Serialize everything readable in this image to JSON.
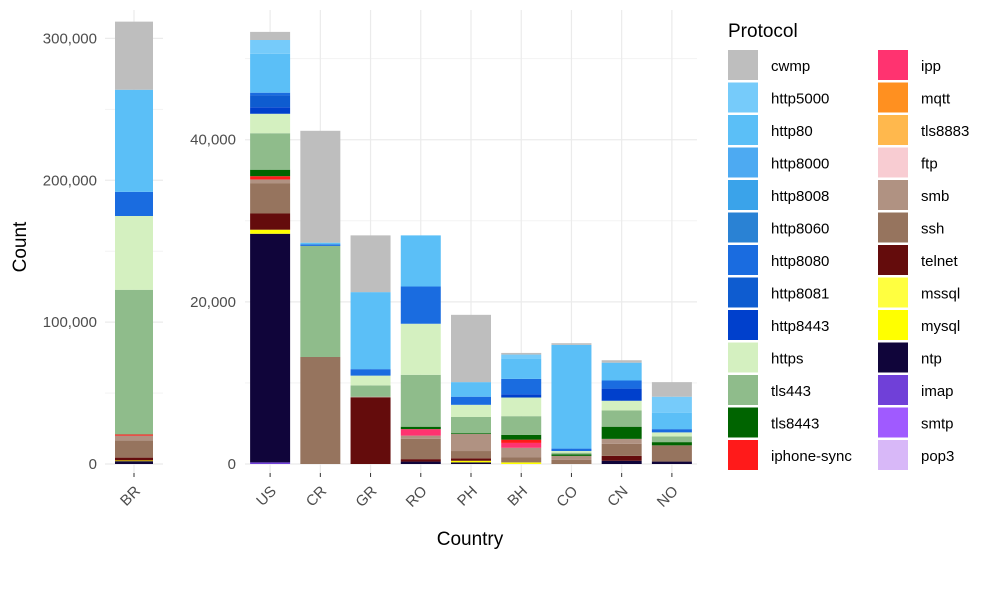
{
  "chart_data": {
    "type": "bar",
    "stacked": true,
    "xlabel": "Country",
    "ylabel": "Count",
    "legend": {
      "title": "Protocol",
      "placement": "right",
      "columns": 2
    },
    "grid": true,
    "protocols": [
      {
        "name": "cwmp",
        "color": "#BEBEBE"
      },
      {
        "name": "http5000",
        "color": "#76CBFA"
      },
      {
        "name": "http80",
        "color": "#5BBFF7"
      },
      {
        "name": "http8000",
        "color": "#4DAAF2"
      },
      {
        "name": "http8008",
        "color": "#3AA3EA"
      },
      {
        "name": "http8060",
        "color": "#2A82D4"
      },
      {
        "name": "http8080",
        "color": "#1A6CE0"
      },
      {
        "name": "http8081",
        "color": "#0E5CD0"
      },
      {
        "name": "http8443",
        "color": "#0040CC"
      },
      {
        "name": "https",
        "color": "#D4F0C0"
      },
      {
        "name": "tls443",
        "color": "#8FBC8B"
      },
      {
        "name": "tls8443",
        "color": "#006400"
      },
      {
        "name": "iphone-sync",
        "color": "#FF1A1A"
      },
      {
        "name": "ipp",
        "color": "#FF3370"
      },
      {
        "name": "mqtt",
        "color": "#FF9020"
      },
      {
        "name": "tls8883",
        "color": "#FFB84D"
      },
      {
        "name": "ftp",
        "color": "#F8CCD2"
      },
      {
        "name": "smb",
        "color": "#B09282"
      },
      {
        "name": "ssh",
        "color": "#96745E"
      },
      {
        "name": "telnet",
        "color": "#640C0C"
      },
      {
        "name": "mssql",
        "color": "#FFFF40"
      },
      {
        "name": "mysql",
        "color": "#FFFF00"
      },
      {
        "name": "ntp",
        "color": "#10053A"
      },
      {
        "name": "imap",
        "color": "#7040D8"
      },
      {
        "name": "smtp",
        "color": "#A05AFF"
      },
      {
        "name": "pop3",
        "color": "#D8B8F8"
      }
    ],
    "panels": [
      {
        "id": "br",
        "categories": [
          "BR"
        ],
        "ylim": [
          0,
          320000
        ],
        "yticks": [
          0,
          100000,
          200000,
          300000
        ],
        "ytick_labels": [
          "0",
          "100,000",
          "200,000",
          "300,000"
        ],
        "stacks": {
          "BR": {
            "ntp": 2000,
            "mysql": 500,
            "telnet": 2000,
            "ssh": 12000,
            "smb": 3500,
            "iphone-sync": 800,
            "tls443": 102000,
            "https": 52000,
            "http8080": 17000,
            "http80": 72000,
            "cwmp": 48000
          }
        }
      },
      {
        "id": "main",
        "categories": [
          "US",
          "CR",
          "GR",
          "RO",
          "PH",
          "BH",
          "CO",
          "CN",
          "NO"
        ],
        "ylim": [
          0,
          56000
        ],
        "yticks": [
          0,
          20000,
          40000
        ],
        "ytick_labels": [
          "0",
          "20,000",
          "40,000"
        ],
        "stacks": {
          "US": {
            "imap": 200,
            "ntp": 28200,
            "mysql": 500,
            "telnet": 2000,
            "ssh": 3700,
            "smb": 500,
            "iphone-sync": 400,
            "tls8443": 800,
            "tls443": 4500,
            "https": 2400,
            "http8443": 800,
            "http8080": 300,
            "http8081": 1500,
            "http80": 4800,
            "http5000": 1700,
            "cwmp": 1000
          },
          "CR": {
            "ssh": 13200,
            "tls443": 13700,
            "http8080": 200,
            "http80": 200,
            "cwmp": 13800
          },
          "GR": {
            "telnet": 8200,
            "smb": 100,
            "tls443": 1400,
            "https": 1200,
            "http8080": 800,
            "http80": 9500,
            "cwmp": 7000
          },
          "RO": {
            "ntp": 300,
            "telnet": 300,
            "ssh": 2500,
            "smb": 400,
            "ipp": 800,
            "tls8443": 300,
            "tls443": 6400,
            "https": 6300,
            "http8080": 4600,
            "http80": 6300
          },
          "PH": {
            "ntp": 200,
            "mysql": 200,
            "telnet": 300,
            "ssh": 900,
            "smb": 2100,
            "tls8443": 100,
            "tls443": 2000,
            "https": 1500,
            "http8080": 1000,
            "http80": 1800,
            "cwmp": 8300
          },
          "BH": {
            "mysql": 200,
            "ssh": 600,
            "smb": 1200,
            "ipp": 600,
            "iphone-sync": 400,
            "tls8443": 600,
            "tls443": 2300,
            "https": 2300,
            "http8443": 400,
            "http8080": 1900,
            "http80": 2500,
            "http5000": 500,
            "cwmp": 200
          },
          "CO": {
            "ssh": 500,
            "smb": 500,
            "tls8443": 200,
            "tls443": 200,
            "https": 200,
            "http8080": 300,
            "http80": 12800,
            "cwmp": 200
          },
          "CN": {
            "ntp": 400,
            "telnet": 600,
            "ssh": 1500,
            "smb": 600,
            "tls8443": 1500,
            "tls443": 2000,
            "https": 1200,
            "http8443": 1500,
            "http8080": 1000,
            "http80": 2200,
            "cwmp": 300
          },
          "NO": {
            "ntp": 300,
            "ssh": 2000,
            "tls8443": 400,
            "tls443": 700,
            "https": 500,
            "http8080": 400,
            "http80": 2000,
            "http5000": 2000,
            "cwmp": 1800
          }
        }
      }
    ]
  }
}
